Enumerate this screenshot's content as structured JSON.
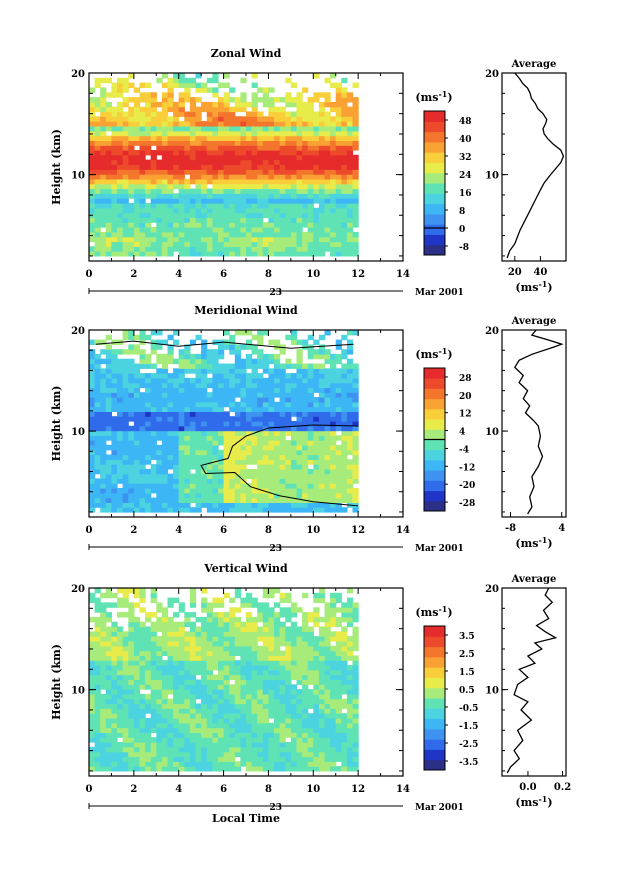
{
  "colors": {
    "scale": [
      "#2c2f87",
      "#1e35c6",
      "#2f6bea",
      "#3f93f0",
      "#3cb6f5",
      "#4cd3e0",
      "#5fe3b4",
      "#a7ec7a",
      "#e8ec4a",
      "#f8cf3a",
      "#f9a233",
      "#f3762c",
      "#ed4a2b",
      "#e52b2b"
    ],
    "line": "#000000",
    "background": "#ffffff"
  },
  "common": {
    "xlabel": "Local Time",
    "date_label": "Mar 2001",
    "day_label": "23",
    "unit_label": "(ms",
    "unit_exp": "-1",
    "unit_close": ")",
    "height_label": "Height (km)",
    "average_title": "Average"
  },
  "chart_data": [
    {
      "id": "zonal",
      "type": "heatmap",
      "title": "Zonal Wind",
      "xlim": [
        0,
        14
      ],
      "x_ticks": [
        "0",
        "2",
        "4",
        "6",
        "8",
        "10",
        "12",
        "14"
      ],
      "data_xlim": [
        0,
        12
      ],
      "ylim": [
        1.5,
        20
      ],
      "y_ticks": [
        "10",
        "20"
      ],
      "ylabel": "Height (km)",
      "colorbar": {
        "unit": "(ms-1)",
        "ticks": [
          "48",
          "40",
          "32",
          "24",
          "16",
          "8",
          "0",
          "-8"
        ],
        "tick_values": [
          48,
          40,
          32,
          24,
          16,
          8,
          0,
          -8
        ],
        "range": [
          -12,
          52
        ],
        "contour_at": 0
      },
      "profile": {
        "series_name": "Average",
        "xlim": [
          10,
          60
        ],
        "x_ticks": [
          20,
          40
        ],
        "x_tick_labels": [
          "20",
          "40"
        ],
        "xlabel": "(ms-1)",
        "points": [
          [
            14,
            1.8
          ],
          [
            16,
            2.5
          ],
          [
            20,
            3.2
          ],
          [
            24,
            4.5
          ],
          [
            28,
            5.5
          ],
          [
            32,
            6.5
          ],
          [
            36,
            7.5
          ],
          [
            40,
            8.5
          ],
          [
            43,
            9.2
          ],
          [
            48,
            10
          ],
          [
            52,
            10.6
          ],
          [
            56,
            11.2
          ],
          [
            58,
            11.8
          ],
          [
            56,
            12.4
          ],
          [
            50,
            13
          ],
          [
            46,
            13.5
          ],
          [
            43,
            14
          ],
          [
            42,
            14.5
          ],
          [
            44,
            15
          ],
          [
            45,
            15.4
          ],
          [
            42,
            16
          ],
          [
            38,
            16.5
          ],
          [
            36,
            17
          ],
          [
            33,
            17.5
          ],
          [
            32,
            18
          ],
          [
            30,
            18.5
          ],
          [
            26,
            19
          ],
          [
            24,
            19.4
          ],
          [
            22,
            19.7
          ],
          [
            20,
            20
          ]
        ]
      },
      "profile_ylim": [
        1.5,
        20
      ],
      "profile_y_ticks": [
        "10",
        "20"
      ]
    },
    {
      "id": "meridional",
      "type": "heatmap",
      "title": "Meridional Wind",
      "xlim": [
        0,
        14
      ],
      "x_ticks": [
        "0",
        "2",
        "4",
        "6",
        "8",
        "10",
        "12",
        "14"
      ],
      "data_xlim": [
        0,
        12
      ],
      "ylim": [
        1.5,
        20
      ],
      "y_ticks": [
        "10",
        "20"
      ],
      "ylabel": "Height (km)",
      "colorbar": {
        "unit": "(ms-1)",
        "ticks": [
          "28",
          "20",
          "12",
          "4",
          "-4",
          "-12",
          "-20",
          "-28"
        ],
        "tick_values": [
          28,
          20,
          12,
          4,
          -4,
          -12,
          -20,
          -28
        ],
        "range": [
          -32,
          32
        ],
        "contour_at": 0
      },
      "profile": {
        "series_name": "Average",
        "xlim": [
          -10,
          5
        ],
        "x_ticks": [
          -8,
          4
        ],
        "x_tick_labels": [
          "-8",
          "4"
        ],
        "xlabel": "(ms-1)",
        "points": [
          [
            -4,
            1.8
          ],
          [
            -3,
            2.5
          ],
          [
            -3.5,
            3.5
          ],
          [
            -2.5,
            4.5
          ],
          [
            -3,
            5.5
          ],
          [
            -1.5,
            6.5
          ],
          [
            -0.5,
            7.5
          ],
          [
            -1.5,
            8.5
          ],
          [
            -1,
            9.5
          ],
          [
            -1.5,
            10.5
          ],
          [
            -2.5,
            11
          ],
          [
            -4.5,
            11.8
          ],
          [
            -3.5,
            12.5
          ],
          [
            -5,
            13.2
          ],
          [
            -4,
            14
          ],
          [
            -6,
            14.8
          ],
          [
            -5,
            15.5
          ],
          [
            -7,
            16.3
          ],
          [
            -6,
            17
          ],
          [
            -3,
            17.6
          ],
          [
            2,
            18.3
          ],
          [
            4,
            18.6
          ],
          [
            1,
            19
          ],
          [
            -3,
            19.5
          ],
          [
            -2,
            20
          ]
        ]
      },
      "profile_ylim": [
        1.5,
        20
      ],
      "profile_y_ticks": [
        "10",
        "20"
      ]
    },
    {
      "id": "vertical",
      "type": "heatmap",
      "title": "Vertical Wind",
      "xlim": [
        0,
        14
      ],
      "x_ticks": [
        "0",
        "2",
        "4",
        "6",
        "8",
        "10",
        "12",
        "14"
      ],
      "data_xlim": [
        0,
        12
      ],
      "ylim": [
        1.5,
        20
      ],
      "y_ticks": [
        "10",
        "20"
      ],
      "ylabel": "Height (km)",
      "colorbar": {
        "unit": "(ms-1)",
        "ticks": [
          "3.5",
          "2.5",
          "1.5",
          "0.5",
          "-0.5",
          "-1.5",
          "-2.5",
          "-3.5"
        ],
        "tick_values": [
          3.5,
          2.5,
          1.5,
          0.5,
          -0.5,
          -1.5,
          -2.5,
          -3.5
        ],
        "range": [
          -4,
          4
        ],
        "contour_at": null
      },
      "profile": {
        "series_name": "Average",
        "xlim": [
          -0.15,
          0.22
        ],
        "x_ticks": [
          0,
          0.2
        ],
        "x_tick_labels": [
          "0.0",
          "0.2"
        ],
        "xlabel": "(ms-1)",
        "points": [
          [
            -0.12,
            1.8
          ],
          [
            -0.1,
            2.4
          ],
          [
            -0.05,
            3.2
          ],
          [
            -0.08,
            4
          ],
          [
            -0.03,
            5
          ],
          [
            -0.06,
            6
          ],
          [
            0.02,
            7
          ],
          [
            -0.04,
            8
          ],
          [
            0.0,
            8.8
          ],
          [
            -0.08,
            9.5
          ],
          [
            -0.06,
            10.5
          ],
          [
            0.0,
            11.2
          ],
          [
            -0.05,
            12
          ],
          [
            0.04,
            12.6
          ],
          [
            0.0,
            13.3
          ],
          [
            0.08,
            14
          ],
          [
            0.04,
            14.6
          ],
          [
            0.16,
            15.1
          ],
          [
            0.1,
            15.7
          ],
          [
            0.05,
            16.3
          ],
          [
            0.12,
            17
          ],
          [
            0.09,
            17.8
          ],
          [
            0.14,
            18.6
          ],
          [
            0.1,
            19.3
          ],
          [
            0.12,
            20
          ]
        ]
      },
      "profile_ylim": [
        1.5,
        20
      ],
      "profile_y_ticks": [
        "10",
        "20"
      ]
    }
  ]
}
